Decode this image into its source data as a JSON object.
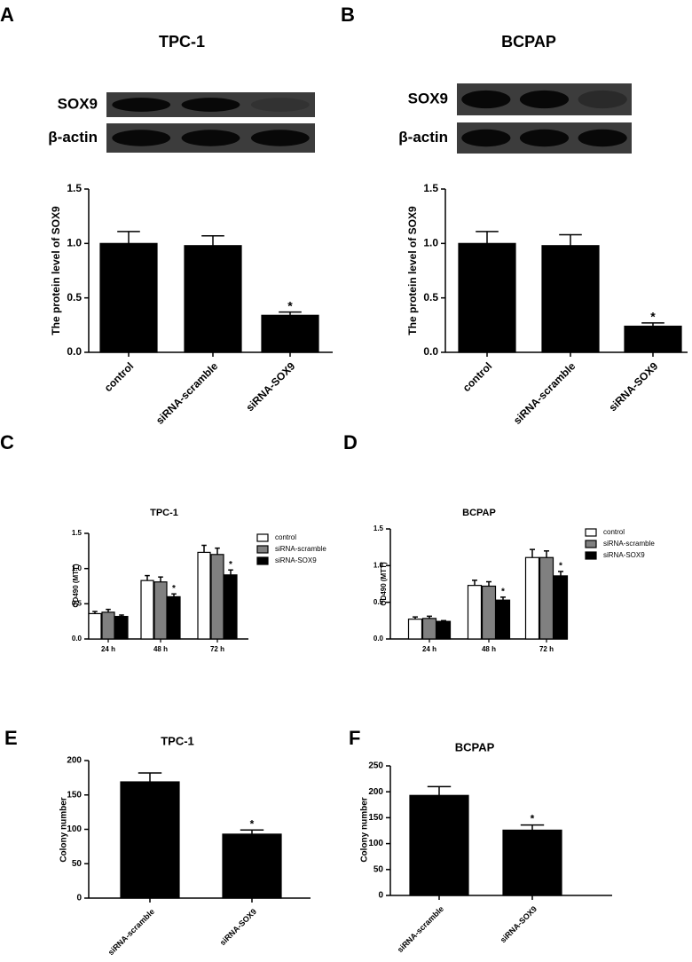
{
  "chart_data": [
    {
      "type": "bar",
      "panel_label": "A",
      "title": "TPC-1",
      "blot_labels": [
        "SOX9",
        "β-actin"
      ],
      "y_label": "The protein level of SOX9",
      "categories": [
        "control",
        "siRNA-scramble",
        "siRNA-SOX9"
      ],
      "values": [
        1.0,
        0.98,
        0.34
      ],
      "errors": [
        0.11,
        0.09,
        0.03
      ],
      "significance": [
        null,
        null,
        "*"
      ],
      "color": "#000000",
      "ylim": [
        0,
        1.5
      ],
      "yticks": [
        {
          "value": 0,
          "label": "0.0"
        },
        0.5,
        {
          "value": 1,
          "label": "1.0"
        },
        1.5
      ]
    },
    {
      "type": "bar",
      "panel_label": "B",
      "title": "BCPAP",
      "blot_labels": [
        "SOX9",
        "β-actin"
      ],
      "y_label": "The protein level of SOX9",
      "categories": [
        "control",
        "siRNA-scramble",
        "siRNA-SOX9"
      ],
      "values": [
        1.0,
        0.98,
        0.24
      ],
      "errors": [
        0.11,
        0.1,
        0.03
      ],
      "significance": [
        null,
        null,
        "*"
      ],
      "color": "#000000",
      "ylim": [
        0,
        1.5
      ],
      "yticks": [
        {
          "value": 0,
          "label": "0.0"
        },
        0.5,
        {
          "value": 1,
          "label": "1.0"
        },
        1.5
      ]
    },
    {
      "type": "grouped-bar",
      "panel_label": "C",
      "title": "TPC-1",
      "y_label": "OD490 (MTT)",
      "categories": [
        "24 h",
        "48 h",
        "72 h"
      ],
      "series": [
        {
          "name": "control",
          "color": "#ffffff",
          "values": [
            0.36,
            0.83,
            1.23
          ],
          "errors": [
            0.03,
            0.07,
            0.1
          ],
          "significance": [
            null,
            null,
            null
          ]
        },
        {
          "name": "siRNA-scramble",
          "color": "#808080",
          "values": [
            0.38,
            0.81,
            1.2
          ],
          "errors": [
            0.04,
            0.07,
            0.09
          ],
          "significance": [
            null,
            null,
            null
          ]
        },
        {
          "name": "siRNA-SOX9",
          "color": "#000000",
          "values": [
            0.32,
            0.6,
            0.91
          ],
          "errors": [
            0.02,
            0.04,
            0.07
          ],
          "significance": [
            null,
            "*",
            "*"
          ]
        }
      ],
      "ylim": [
        0,
        1.5
      ],
      "yticks": [
        {
          "value": 0,
          "label": "0.0"
        },
        0.5,
        {
          "value": 1,
          "label": "1.0"
        },
        1.5
      ]
    },
    {
      "type": "grouped-bar",
      "panel_label": "D",
      "title": "BCPAP",
      "y_label": "OD490 (MTT)",
      "categories": [
        "24 h",
        "48 h",
        "72 h"
      ],
      "series": [
        {
          "name": "control",
          "color": "#ffffff",
          "values": [
            0.27,
            0.73,
            1.11
          ],
          "errors": [
            0.03,
            0.07,
            0.11
          ],
          "significance": [
            null,
            null,
            null
          ]
        },
        {
          "name": "siRNA-scramble",
          "color": "#808080",
          "values": [
            0.28,
            0.72,
            1.11
          ],
          "errors": [
            0.03,
            0.06,
            0.09
          ],
          "significance": [
            null,
            null,
            null
          ]
        },
        {
          "name": "siRNA-SOX9",
          "color": "#000000",
          "values": [
            0.24,
            0.53,
            0.86
          ],
          "errors": [
            0.01,
            0.04,
            0.06
          ],
          "significance": [
            null,
            "*",
            "*"
          ]
        }
      ],
      "ylim": [
        0,
        1.5
      ],
      "yticks": [
        {
          "value": 0,
          "label": "0.0"
        },
        0.5,
        {
          "value": 1,
          "label": "1.0"
        },
        1.5
      ]
    },
    {
      "type": "bar",
      "panel_label": "E",
      "title": "TPC-1",
      "y_label": "Colony number",
      "categories": [
        "siRNA-scramble",
        "siRNA-SOX9"
      ],
      "values": [
        169,
        93
      ],
      "errors": [
        13,
        6
      ],
      "significance": [
        null,
        "*"
      ],
      "color": "#000000",
      "ylim": [
        0,
        200
      ],
      "yticks": [
        0,
        50,
        100,
        150,
        200
      ]
    },
    {
      "type": "bar",
      "panel_label": "F",
      "title": "BCPAP",
      "y_label": "Colony number",
      "categories": [
        "siRNA-scramble",
        "siRNA-SOX9"
      ],
      "values": [
        193,
        126
      ],
      "errors": [
        17,
        10
      ],
      "significance": [
        null,
        "*"
      ],
      "color": "#000000",
      "ylim": [
        0,
        250
      ],
      "yticks": [
        0,
        50,
        100,
        150,
        200,
        250
      ]
    }
  ]
}
